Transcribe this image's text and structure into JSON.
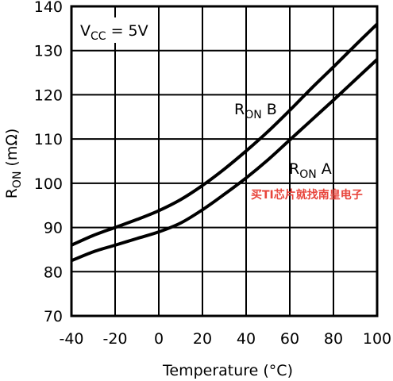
{
  "chart_data": {
    "type": "line",
    "xlabel": "Temperature (°C)",
    "ylabel": {
      "main": "R",
      "sub": "ON",
      "unit": "(mΩ)"
    },
    "xlim": [
      -40,
      100
    ],
    "ylim": [
      70,
      140
    ],
    "xticks": [
      "-40",
      "-20",
      "0",
      "20",
      "40",
      "60",
      "80",
      "100"
    ],
    "yticks": [
      "70",
      "80",
      "90",
      "100",
      "110",
      "120",
      "130",
      "140"
    ],
    "grid": true,
    "series": [
      {
        "name": "RON B",
        "x": [
          -40,
          -30,
          -20,
          -10,
          0,
          10,
          20,
          30,
          40,
          50,
          60,
          70,
          80,
          90,
          100
        ],
        "y": [
          86,
          88.2,
          90,
          91.8,
          93.8,
          96.3,
          99.5,
          103.2,
          107.3,
          111.7,
          116.5,
          121.5,
          126.3,
          131.2,
          136
        ]
      },
      {
        "name": "RON A",
        "x": [
          -40,
          -30,
          -20,
          -10,
          0,
          10,
          20,
          30,
          40,
          50,
          60,
          70,
          80,
          90,
          100
        ],
        "y": [
          82.5,
          84.5,
          86,
          87.5,
          89,
          91,
          94,
          97.5,
          101.2,
          105.3,
          109.8,
          114.3,
          118.8,
          123.4,
          128
        ]
      }
    ],
    "annotations": {
      "vcc": {
        "main": "V",
        "sub": "CC",
        "rest": " = 5V"
      },
      "ron_b": {
        "main": "R",
        "sub": "ON",
        "rest": " B"
      },
      "ron_a": {
        "main": "R",
        "sub": "ON",
        "rest": " A"
      }
    }
  },
  "watermark": "买TI芯片就找南皇电子"
}
